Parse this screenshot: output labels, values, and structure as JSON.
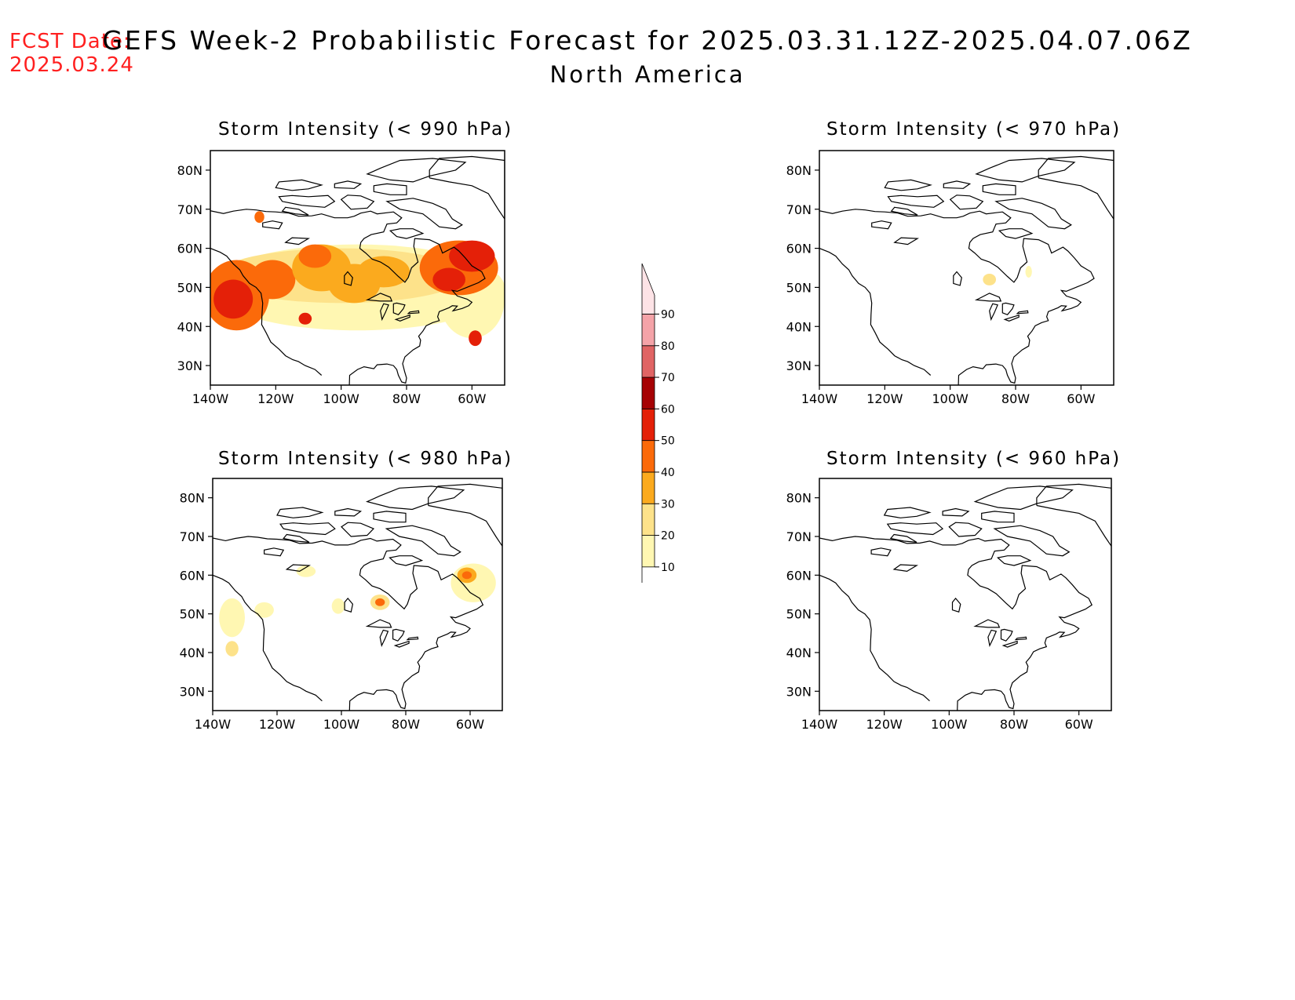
{
  "fcst_date": {
    "label": "FCST Date:",
    "value": "2025.03.24"
  },
  "title": "GEFS Week-2 Probabilistic Forecast for 2025.03.31.12Z-2025.04.07.06Z",
  "subtitle": "North America",
  "axes": {
    "lat_ticks": [
      "80N",
      "70N",
      "60N",
      "50N",
      "40N",
      "30N"
    ],
    "lon_ticks": [
      "140W",
      "120W",
      "100W",
      "80W",
      "60W"
    ],
    "lon_range": [
      -140,
      -50
    ],
    "lat_range": [
      25,
      85
    ]
  },
  "colorbar": {
    "levels": [
      "10",
      "20",
      "30",
      "40",
      "50",
      "60",
      "70",
      "80",
      "90"
    ],
    "colors": [
      "#fff7b2",
      "#fde28a",
      "#fbaa1e",
      "#fb6a0a",
      "#e42008",
      "#a60204",
      "#e06464",
      "#f4a3a8",
      "#fde3e6"
    ]
  },
  "panels": [
    {
      "id": "p990",
      "title": "Storm Intensity (< 990 hPa)",
      "areas": [
        {
          "lon": -132,
          "lat": 48,
          "lon_r": 10,
          "lat_r": 9,
          "level": 3
        },
        {
          "lon": -133,
          "lat": 47,
          "lon_r": 6,
          "lat_r": 5,
          "level": 4
        },
        {
          "lon": -121,
          "lat": 52,
          "lon_r": 7,
          "lat_r": 5,
          "level": 3
        },
        {
          "lon": -106,
          "lat": 55,
          "lon_r": 9,
          "lat_r": 6,
          "level": 2
        },
        {
          "lon": -108,
          "lat": 58,
          "lon_r": 5,
          "lat_r": 3,
          "level": 3
        },
        {
          "lon": -96,
          "lat": 51,
          "lon_r": 8,
          "lat_r": 5,
          "level": 2
        },
        {
          "lon": -87,
          "lat": 54,
          "lon_r": 8,
          "lat_r": 4,
          "level": 2
        },
        {
          "lon": -64,
          "lat": 55,
          "lon_r": 12,
          "lat_r": 7,
          "level": 3
        },
        {
          "lon": -60,
          "lat": 58,
          "lon_r": 7,
          "lat_r": 4,
          "level": 4
        },
        {
          "lon": -67,
          "lat": 52,
          "lon_r": 5,
          "lat_r": 3,
          "level": 4
        },
        {
          "lon": -59,
          "lat": 37,
          "lon_r": 2,
          "lat_r": 2,
          "level": 4
        },
        {
          "lon": -111,
          "lat": 42,
          "lon_r": 2,
          "lat_r": 1.5,
          "level": 4
        },
        {
          "lon": -125,
          "lat": 68,
          "lon_r": 1.5,
          "lat_r": 1.5,
          "level": 3
        }
      ],
      "base": [
        {
          "lon": -95,
          "lat": 50,
          "lon_r": 45,
          "lat_r": 11,
          "level": 0
        },
        {
          "lon": -100,
          "lat": 53,
          "lon_r": 38,
          "lat_r": 7,
          "level": 1
        },
        {
          "lon": -60,
          "lat": 47,
          "lon_r": 10,
          "lat_r": 10,
          "level": 0
        }
      ]
    },
    {
      "id": "p970",
      "title": "Storm Intensity (< 970 hPa)",
      "areas": [
        {
          "lon": -88,
          "lat": 52,
          "lon_r": 2,
          "lat_r": 1.5,
          "level": 1
        },
        {
          "lon": -76,
          "lat": 54,
          "lon_r": 1,
          "lat_r": 1.5,
          "level": 0
        }
      ],
      "base": []
    },
    {
      "id": "p980",
      "title": "Storm Intensity (< 980 hPa)",
      "areas": [
        {
          "lon": -134,
          "lat": 49,
          "lon_r": 4,
          "lat_r": 5,
          "level": 0
        },
        {
          "lon": -134,
          "lat": 41,
          "lon_r": 2,
          "lat_r": 2,
          "level": 1
        },
        {
          "lon": -124,
          "lat": 51,
          "lon_r": 3,
          "lat_r": 2,
          "level": 0
        },
        {
          "lon": -111,
          "lat": 61,
          "lon_r": 3,
          "lat_r": 1.5,
          "level": 0
        },
        {
          "lon": -101,
          "lat": 52,
          "lon_r": 2,
          "lat_r": 2,
          "level": 0
        },
        {
          "lon": -88,
          "lat": 53,
          "lon_r": 3,
          "lat_r": 2,
          "level": 1
        },
        {
          "lon": -88,
          "lat": 53,
          "lon_r": 1.5,
          "lat_r": 1,
          "level": 3
        },
        {
          "lon": -59,
          "lat": 58,
          "lon_r": 7,
          "lat_r": 5,
          "level": 0
        },
        {
          "lon": -61,
          "lat": 60,
          "lon_r": 3,
          "lat_r": 2,
          "level": 2
        },
        {
          "lon": -61,
          "lat": 60,
          "lon_r": 1.5,
          "lat_r": 1,
          "level": 3
        }
      ],
      "base": []
    },
    {
      "id": "p960",
      "title": "Storm Intensity (< 960 hPa)",
      "areas": [],
      "base": []
    }
  ]
}
